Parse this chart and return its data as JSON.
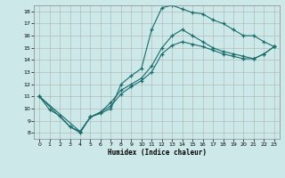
{
  "title": "",
  "xlabel": "Humidex (Indice chaleur)",
  "bg_color": "#cce8e8",
  "grid_color": "#aaaaaa",
  "line_color": "#1a6b6b",
  "xlim": [
    -0.5,
    23.5
  ],
  "ylim": [
    7.5,
    18.5
  ],
  "xticks": [
    0,
    1,
    2,
    3,
    4,
    5,
    6,
    7,
    8,
    9,
    10,
    11,
    12,
    13,
    14,
    15,
    16,
    17,
    18,
    19,
    20,
    21,
    22,
    23
  ],
  "xtick_labels": [
    "0",
    "1",
    "2",
    "3",
    "4",
    "5",
    "6",
    "7",
    "8",
    "9",
    "10",
    "11",
    "12",
    "13",
    "14",
    "15",
    "16",
    "17",
    "18",
    "19",
    "20",
    "21",
    "22",
    "23"
  ],
  "yticks": [
    8,
    9,
    10,
    11,
    12,
    13,
    14,
    15,
    16,
    17,
    18
  ],
  "line1_x": [
    0,
    1,
    2,
    3,
    4,
    5,
    6,
    7,
    8,
    9,
    10,
    11,
    12,
    13,
    14,
    15,
    16,
    17,
    18,
    19,
    20,
    21,
    22,
    23
  ],
  "line1_y": [
    11,
    9.9,
    9.4,
    8.5,
    8.0,
    9.3,
    9.6,
    10.0,
    12.0,
    12.7,
    13.3,
    16.5,
    18.3,
    18.5,
    18.2,
    17.9,
    17.8,
    17.3,
    17.0,
    16.5,
    16.0,
    16.0,
    15.5,
    15.1
  ],
  "line2_x": [
    0,
    3,
    4,
    5,
    6,
    7,
    8,
    9,
    10,
    11,
    12,
    13,
    14,
    15,
    16,
    17,
    18,
    19,
    20,
    21,
    22,
    23
  ],
  "line2_y": [
    11,
    8.5,
    8.1,
    9.3,
    9.7,
    10.5,
    11.5,
    12.0,
    12.5,
    13.5,
    15.0,
    16.0,
    16.5,
    16.0,
    15.5,
    15.0,
    14.7,
    14.5,
    14.3,
    14.1,
    14.5,
    15.1
  ],
  "line3_x": [
    0,
    4,
    5,
    6,
    7,
    8,
    9,
    10,
    11,
    12,
    13,
    14,
    15,
    16,
    17,
    18,
    19,
    20,
    21,
    22,
    23
  ],
  "line3_y": [
    11,
    8.1,
    9.3,
    9.7,
    10.2,
    11.2,
    11.8,
    12.3,
    13.0,
    14.5,
    15.2,
    15.5,
    15.3,
    15.1,
    14.8,
    14.5,
    14.3,
    14.1,
    14.1,
    14.5,
    15.1
  ]
}
